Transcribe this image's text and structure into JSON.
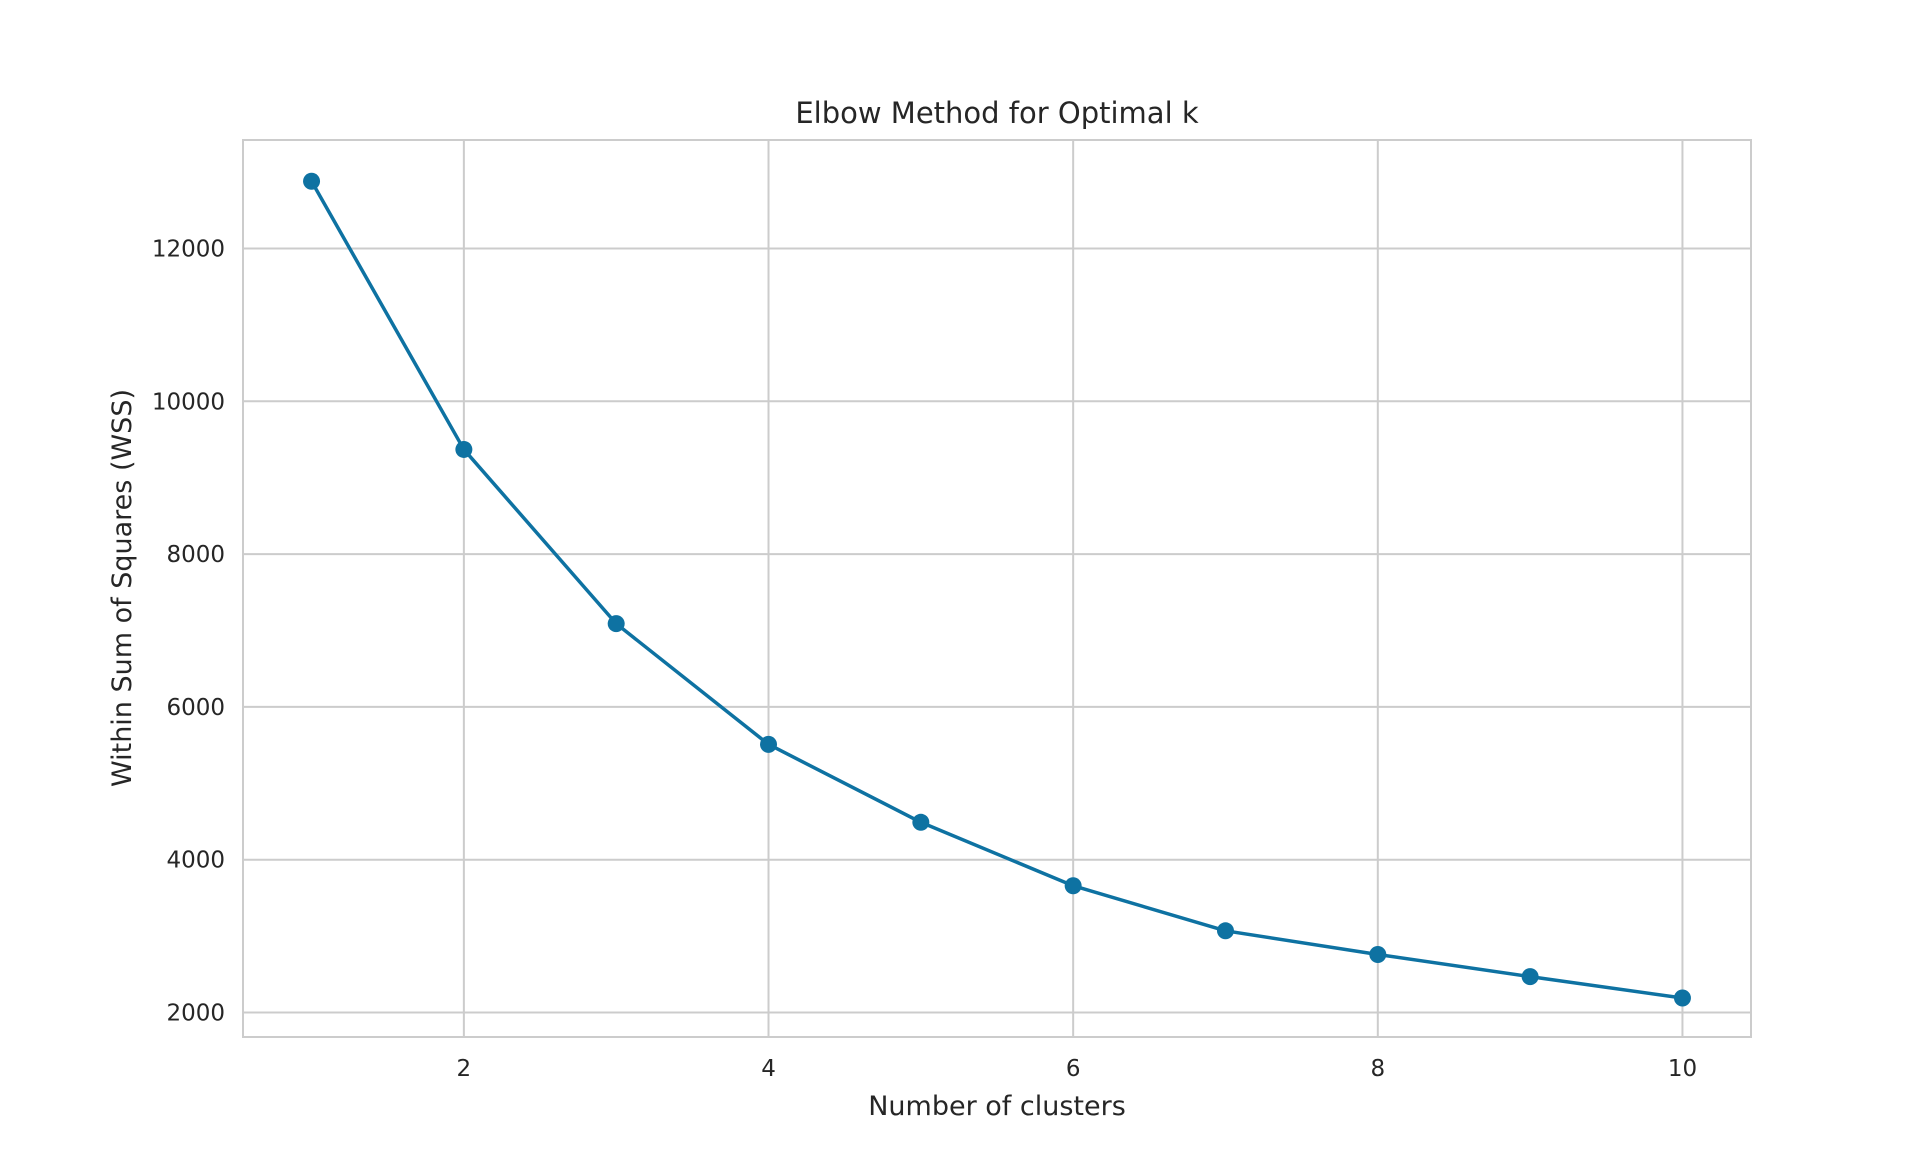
{
  "chart_data": {
    "type": "line",
    "title": "Elbow Method for Optimal k",
    "xlabel": "Number of clusters",
    "ylabel": "Within Sum of Squares (WSS)",
    "x": [
      1,
      2,
      3,
      4,
      5,
      6,
      7,
      8,
      9,
      10
    ],
    "series": [
      {
        "values": [
          12880,
          9370,
          7090,
          5510,
          4490,
          3660,
          3070,
          2760,
          2470,
          2190
        ]
      }
    ],
    "xlim": [
      0.55,
      10.45
    ],
    "ylim": [
      1680,
      13420
    ],
    "xticks": [
      2,
      4,
      6,
      8,
      10
    ],
    "yticks": [
      2000,
      4000,
      6000,
      8000,
      10000,
      12000
    ],
    "grid": true,
    "marker": "circle",
    "colors": {
      "line": "#0e72a2",
      "grid": "#cccccc",
      "frame": "#cccccc",
      "text": "#262626",
      "background": "#ffffff"
    }
  }
}
